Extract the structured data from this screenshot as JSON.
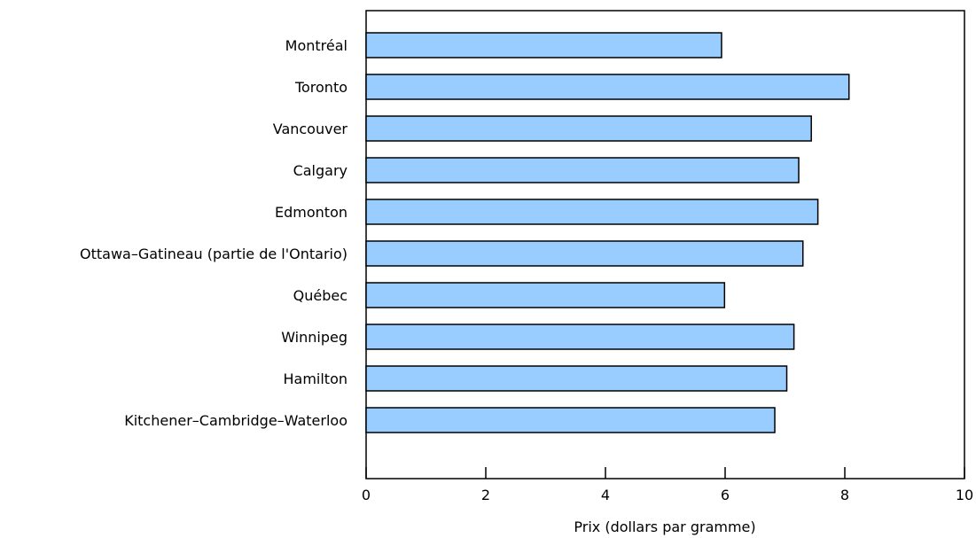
{
  "chart_data": {
    "type": "bar",
    "orientation": "horizontal",
    "categories": [
      "Montréal",
      "Toronto",
      "Vancouver",
      "Calgary",
      "Edmonton",
      "Ottawa–Gatineau (partie de l'Ontario)",
      "Québec",
      "Winnipeg",
      "Hamilton",
      "Kitchener–Cambridge–Waterloo"
    ],
    "values": [
      5.94,
      8.07,
      7.44,
      7.23,
      7.55,
      7.3,
      5.99,
      7.15,
      7.03,
      6.83
    ],
    "xlabel": "Prix (dollars par gramme)",
    "ylabel": "",
    "xlim": [
      0,
      10
    ],
    "xticks": [
      0,
      2,
      4,
      6,
      8,
      10
    ],
    "xtick_labels": [
      "0",
      "2",
      "4",
      "6",
      "8",
      "10"
    ],
    "grid": false,
    "colors": {
      "bar_fill": "#99ccff",
      "bar_stroke": "#000000",
      "axis": "#000000"
    }
  }
}
